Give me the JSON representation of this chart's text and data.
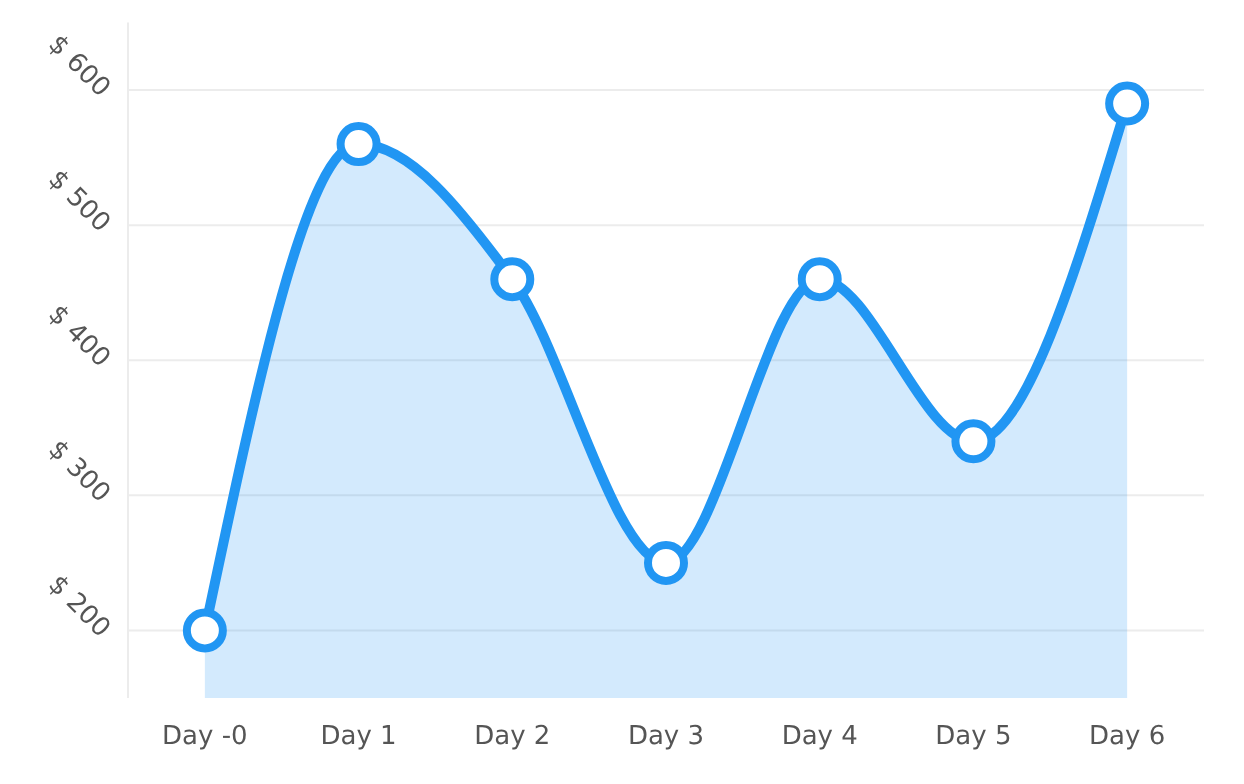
{
  "chart_data": {
    "type": "area",
    "categories": [
      "Day -0",
      "Day 1",
      "Day 2",
      "Day 3",
      "Day 4",
      "Day 5",
      "Day 6"
    ],
    "series": [
      {
        "color": "#2196f3",
        "values": [
          200,
          560,
          460,
          250,
          460,
          340,
          590
        ]
      }
    ],
    "ylim": [
      150,
      650
    ],
    "yticks": [
      {
        "value": 200,
        "label": "$ 200"
      },
      {
        "value": 300,
        "label": "$ 300"
      },
      {
        "value": 400,
        "label": "$ 400"
      },
      {
        "value": 500,
        "label": "$ 500"
      },
      {
        "value": 600,
        "label": "$ 600"
      }
    ],
    "grid": "y",
    "marker": "circle"
  }
}
